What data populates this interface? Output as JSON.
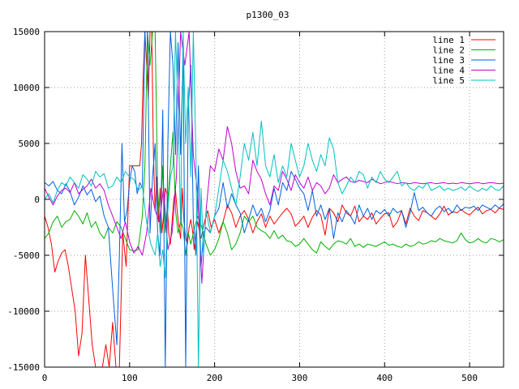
{
  "chart_data": {
    "type": "line",
    "title": "p1300_03",
    "xlabel": "",
    "ylabel": "",
    "xlim": [
      0,
      540
    ],
    "ylim": [
      -15000,
      15000
    ],
    "xticks": [
      0,
      100,
      200,
      300,
      400,
      500
    ],
    "yticks": [
      -15000,
      -10000,
      -5000,
      0,
      5000,
      10000,
      15000
    ],
    "grid": true,
    "legend": "top-right",
    "series": [
      {
        "name": "line 1",
        "color": "#ff0000",
        "x": [
          0,
          4,
          8,
          12,
          16,
          20,
          24,
          28,
          32,
          36,
          40,
          44,
          48,
          52,
          56,
          60,
          64,
          68,
          72,
          76,
          80,
          84,
          88,
          92,
          96,
          100,
          104,
          108,
          112,
          114,
          116,
          118,
          120,
          122,
          124,
          126,
          128,
          130,
          132,
          134,
          136,
          138,
          140,
          142,
          144,
          146,
          148,
          150,
          152,
          154,
          156,
          158,
          160,
          162,
          164,
          166,
          168,
          170,
          172,
          174,
          176,
          178,
          180,
          184,
          188,
          192,
          196,
          200,
          205,
          210,
          215,
          220,
          225,
          230,
          235,
          240,
          245,
          250,
          255,
          260,
          265,
          270,
          275,
          280,
          285,
          290,
          295,
          300,
          305,
          310,
          315,
          320,
          325,
          330,
          335,
          340,
          345,
          350,
          355,
          360,
          365,
          370,
          375,
          380,
          385,
          390,
          395,
          400,
          405,
          410,
          415,
          420,
          425,
          430,
          435,
          440,
          445,
          450,
          455,
          460,
          465,
          470,
          475,
          480,
          485,
          490,
          495,
          500,
          505,
          510,
          515,
          520,
          525,
          530,
          535,
          540
        ],
        "y": [
          -1500,
          -2500,
          -4000,
          -6500,
          -5500,
          -4800,
          -4500,
          -6000,
          -8000,
          -10000,
          -14000,
          -12000,
          -5000,
          -9000,
          -13000,
          -15000,
          -15000,
          -15000,
          -13000,
          -15000,
          -11000,
          -15000,
          -15000,
          -3000,
          -6000,
          3000,
          3000,
          3000,
          3000,
          5000,
          11000,
          15000,
          12000,
          9000,
          15000,
          15000,
          4000,
          -1000,
          2000,
          -2000,
          1000,
          -3000,
          -1500,
          1000,
          500,
          -3000,
          -4000,
          -2000,
          0,
          800,
          -1000,
          -2500,
          -3500,
          1000,
          -2000,
          -3500,
          -4000,
          -2500,
          -1800,
          -2800,
          -4500,
          -3000,
          -2000,
          -3500,
          -2000,
          -1000,
          -2500,
          -1800,
          -3000,
          -2000,
          -500,
          -1200,
          -2500,
          -1500,
          -1000,
          -1800,
          -3000,
          -2000,
          -1300,
          -2500,
          -1500,
          -2200,
          -1700,
          -1200,
          -800,
          -1300,
          -2400,
          -2000,
          -1500,
          -2500,
          -1600,
          -1000,
          -1400,
          -3200,
          -800,
          -1200,
          -2000,
          -500,
          -1200,
          -1500,
          -600,
          -2000,
          -1500,
          -1800,
          -1200,
          -2200,
          -1700,
          -1300,
          -1200,
          -2500,
          -2000,
          -1000,
          -2200,
          -800,
          -1500,
          -1900,
          -1000,
          -1200,
          -1500,
          -1800,
          -1300,
          -600,
          -1400,
          -1100,
          -1200,
          -900,
          -1200,
          -1400,
          -1000,
          -700,
          -1300,
          -1000,
          -900,
          -1200,
          -800,
          -900
        ]
      },
      {
        "name": "line 2",
        "color": "#00b000",
        "x": [
          0,
          5,
          10,
          15,
          20,
          25,
          30,
          35,
          40,
          45,
          50,
          55,
          60,
          65,
          70,
          75,
          80,
          85,
          90,
          95,
          100,
          105,
          110,
          115,
          118,
          121,
          124,
          127,
          130,
          133,
          136,
          139,
          142,
          145,
          148,
          151,
          154,
          157,
          160,
          163,
          166,
          169,
          172,
          175,
          180,
          185,
          190,
          195,
          200,
          205,
          210,
          215,
          220,
          225,
          230,
          235,
          240,
          245,
          250,
          255,
          260,
          265,
          270,
          275,
          280,
          285,
          290,
          295,
          300,
          305,
          310,
          315,
          320,
          325,
          330,
          335,
          340,
          345,
          350,
          355,
          360,
          365,
          370,
          375,
          380,
          385,
          390,
          395,
          400,
          405,
          410,
          415,
          420,
          425,
          430,
          435,
          440,
          445,
          450,
          455,
          460,
          465,
          470,
          475,
          480,
          485,
          490,
          495,
          500,
          505,
          510,
          515,
          520,
          525,
          530,
          535,
          540
        ],
        "y": [
          -3500,
          -3000,
          -2000,
          -1500,
          -2500,
          -2000,
          -1800,
          -1000,
          -1500,
          -2200,
          -1200,
          -2500,
          -2000,
          -3000,
          -3500,
          -2500,
          -3000,
          -2000,
          -2500,
          -3500,
          -4500,
          -4600,
          -4500,
          -1500,
          3000,
          15000,
          12000,
          15000,
          15000,
          1000,
          -3000,
          3000,
          -3000,
          0,
          3000,
          6000,
          -1000,
          -3000,
          -2000,
          -2500,
          -5000,
          -3000,
          -4000,
          -3000,
          -1500,
          -2500,
          -4000,
          -5000,
          -4500,
          -3500,
          -2000,
          -3000,
          -4500,
          -4000,
          -3000,
          -1500,
          -2000,
          -1500,
          -2500,
          -2800,
          -3000,
          -3500,
          -2800,
          -3500,
          -3200,
          -3700,
          -3800,
          -4200,
          -4000,
          -3500,
          -4000,
          -4500,
          -4800,
          -3800,
          -4200,
          -4500,
          -4000,
          -3700,
          -3800,
          -4000,
          -3500,
          -4200,
          -4000,
          -4300,
          -4000,
          -4100,
          -4200,
          -4000,
          -3800,
          -4100,
          -4000,
          -4200,
          -4300,
          -4000,
          -4200,
          -4100,
          -3800,
          -4000,
          -3900,
          -3700,
          -3800,
          -3500,
          -3700,
          -3800,
          -3900,
          -3700,
          -3000,
          -3600,
          -3900,
          -3800,
          -3500,
          -3800,
          -3900,
          -3500,
          -3600,
          -3800,
          -3600
        ]
      },
      {
        "name": "line 3",
        "color": "#0060e0",
        "x": [
          0,
          5,
          10,
          15,
          20,
          25,
          30,
          35,
          40,
          45,
          50,
          55,
          60,
          65,
          70,
          75,
          80,
          85,
          88,
          91,
          94,
          97,
          100,
          103,
          106,
          109,
          112,
          115,
          118,
          121,
          124,
          127,
          130,
          133,
          136,
          139,
          142,
          145,
          148,
          151,
          154,
          157,
          160,
          163,
          166,
          169,
          172,
          175,
          178,
          181,
          184,
          187,
          190,
          195,
          200,
          205,
          210,
          215,
          220,
          225,
          230,
          235,
          240,
          245,
          250,
          255,
          260,
          265,
          270,
          275,
          280,
          285,
          290,
          295,
          300,
          305,
          310,
          315,
          320,
          325,
          330,
          335,
          340,
          345,
          350,
          355,
          360,
          365,
          370,
          375,
          380,
          385,
          390,
          395,
          400,
          405,
          410,
          415,
          420,
          425,
          430,
          435,
          440,
          445,
          450,
          455,
          460,
          465,
          470,
          475,
          480,
          485,
          490,
          495,
          500,
          505,
          510,
          515,
          520,
          525,
          530,
          535,
          540
        ],
        "y": [
          1500,
          1200,
          1600,
          800,
          500,
          1400,
          700,
          -500,
          200,
          1200,
          400,
          900,
          -200,
          300,
          -1500,
          -2500,
          -8000,
          -13000,
          -5000,
          5000,
          -2000,
          -1000,
          1500,
          3000,
          2500,
          500,
          1500,
          1000,
          15000,
          15000,
          -3000,
          2000,
          5000,
          -3000,
          -5000,
          8000,
          -15000,
          5000,
          15000,
          12000,
          4000,
          14000,
          4000,
          13000,
          -15000,
          8000,
          12000,
          -2000,
          -5000,
          3000,
          -6000,
          -3000,
          -2500,
          -3000,
          -1500,
          -800,
          1500,
          -800,
          500,
          -500,
          -1200,
          -3000,
          -1800,
          -500,
          -1500,
          -800,
          -2000,
          -1000,
          1000,
          -500,
          1500,
          800,
          2500,
          1800,
          1000,
          500,
          -1000,
          800,
          -1500,
          -500,
          -1800,
          -800,
          -3500,
          -1200,
          -2000,
          -1000,
          -1500,
          -2200,
          -500,
          -1500,
          -800,
          -1800,
          -1000,
          -1300,
          -900,
          -1500,
          -800,
          -1200,
          -1000,
          -2500,
          -1200,
          600,
          -1000,
          -700,
          -1200,
          -1500,
          -900,
          -600,
          -1100,
          -800,
          -1200,
          -500,
          -1000,
          -700,
          -800,
          -600,
          -1000,
          -500,
          -700,
          -900,
          -500,
          -800,
          -400
        ]
      },
      {
        "name": "line 4",
        "color": "#c000d0",
        "x": [
          0,
          5,
          10,
          15,
          20,
          25,
          30,
          35,
          40,
          45,
          50,
          55,
          60,
          65,
          70,
          75,
          80,
          85,
          90,
          95,
          100,
          105,
          110,
          115,
          120,
          125,
          130,
          135,
          140,
          145,
          150,
          155,
          160,
          165,
          170,
          175,
          180,
          185,
          190,
          195,
          200,
          205,
          210,
          215,
          220,
          225,
          230,
          235,
          240,
          245,
          250,
          255,
          260,
          265,
          270,
          275,
          280,
          285,
          290,
          295,
          300,
          305,
          310,
          315,
          320,
          325,
          330,
          335,
          340,
          345,
          350,
          355,
          360,
          365,
          370,
          375,
          380,
          385,
          390,
          395,
          400,
          405,
          410,
          415,
          420,
          425,
          430,
          435,
          440,
          445,
          450,
          455,
          460,
          465,
          470,
          475,
          480,
          485,
          490,
          495,
          500,
          505,
          510,
          515,
          520,
          525,
          530,
          535,
          540
        ],
        "y": [
          1000,
          200,
          -500,
          300,
          800,
          1000,
          600,
          1500,
          500,
          900,
          1200,
          1800,
          1000,
          1400,
          800,
          -500,
          -1500,
          -2500,
          -3500,
          -2000,
          -3800,
          -4800,
          -4200,
          -5000,
          -3000,
          1000,
          -1000,
          -2000,
          1000,
          -4500,
          -3000,
          2000,
          15000,
          12000,
          15000,
          4000,
          500,
          -7500,
          -1000,
          3000,
          2500,
          4500,
          3500,
          6500,
          5000,
          2500,
          1000,
          1200,
          500,
          3500,
          2500,
          1800,
          500,
          -500,
          1200,
          800,
          2500,
          1800,
          800,
          2200,
          1500,
          1000,
          2000,
          800,
          1500,
          1200,
          500,
          1000,
          2200,
          1500,
          1800,
          2000,
          1600,
          1500,
          1700,
          1600,
          1500,
          1800,
          1600,
          1400,
          1500,
          1600,
          1500,
          1400,
          1500,
          1450,
          1400,
          1500,
          1450,
          1400,
          1450,
          1500,
          1400,
          1450,
          1500,
          1400,
          1450,
          1400,
          1500,
          1450,
          1400,
          1450,
          1500,
          1400,
          1450,
          1500,
          1450,
          1400,
          1450
        ]
      },
      {
        "name": "line 5",
        "color": "#00c0c0",
        "x": [
          0,
          5,
          10,
          15,
          20,
          25,
          30,
          35,
          40,
          45,
          50,
          55,
          60,
          65,
          70,
          75,
          80,
          85,
          90,
          95,
          100,
          105,
          110,
          115,
          120,
          125,
          130,
          133,
          136,
          139,
          142,
          145,
          148,
          151,
          154,
          157,
          160,
          163,
          166,
          169,
          172,
          175,
          178,
          181,
          184,
          187,
          190,
          195,
          200,
          205,
          210,
          215,
          220,
          225,
          230,
          235,
          240,
          245,
          250,
          255,
          260,
          265,
          270,
          275,
          280,
          285,
          290,
          295,
          300,
          305,
          310,
          315,
          320,
          325,
          330,
          335,
          340,
          345,
          350,
          355,
          360,
          365,
          370,
          375,
          380,
          385,
          390,
          395,
          400,
          405,
          410,
          415,
          420,
          425,
          430,
          435,
          440,
          445,
          450,
          455,
          460,
          465,
          470,
          475,
          480,
          485,
          490,
          495,
          500,
          505,
          510,
          515,
          520,
          525,
          530,
          535,
          540
        ],
        "y": [
          0,
          500,
          -300,
          800,
          1500,
          1200,
          2000,
          1500,
          1000,
          2200,
          1800,
          1200,
          2500,
          2000,
          2300,
          1000,
          1200,
          2000,
          1500,
          2500,
          2000,
          1800,
          800,
          1200,
          -2000,
          -4000,
          -5000,
          -3000,
          -6000,
          -4500,
          -7000,
          -1000,
          2000,
          3000,
          15000,
          8000,
          -2000,
          15000,
          5000,
          10000,
          2000,
          15000,
          4000,
          -15000,
          1000,
          -5000,
          -1000,
          -3000,
          -1500,
          1000,
          3500,
          2500,
          1000,
          -500,
          2000,
          5000,
          3500,
          6000,
          3000,
          7000,
          3000,
          2000,
          4000,
          1500,
          3000,
          2000,
          5000,
          3500,
          2000,
          3000,
          5000,
          3500,
          2500,
          4000,
          3000,
          5500,
          4500,
          1500,
          500,
          1200,
          2000,
          1500,
          2500,
          2200,
          1000,
          2000,
          1500,
          2500,
          1800,
          1500,
          2000,
          2500,
          1200,
          1500,
          1000,
          800,
          1200,
          1000,
          1500,
          800,
          1000,
          1200,
          800,
          1000,
          800,
          900,
          1100,
          800,
          1200,
          900,
          700,
          1000,
          800,
          1200,
          900,
          800,
          1200
        ]
      }
    ]
  }
}
